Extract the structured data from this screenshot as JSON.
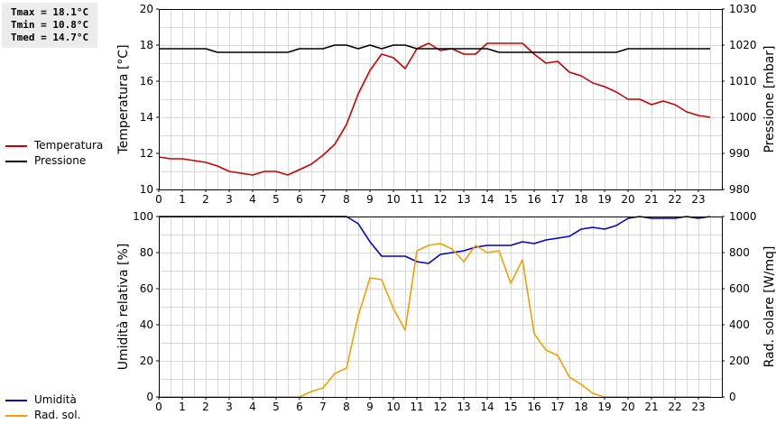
{
  "stats": {
    "tmax": "Tmax = 18.1°C",
    "tmin": "Tmin = 10.8°C",
    "tmed": "Tmed = 14.7°C"
  },
  "colors": {
    "temperature": "#cc0000",
    "pressure": "#000000",
    "humidity": "#0000cc",
    "radiation": "#f0a000",
    "grid": "#d8d8d8"
  },
  "legends": {
    "top": [
      {
        "label": "Temperatura",
        "color": "#cc0000"
      },
      {
        "label": "Pressione",
        "color": "#000000"
      }
    ],
    "bottom": [
      {
        "label": "Umidità",
        "color": "#0000cc"
      },
      {
        "label": "Rad. sol.",
        "color": "#f0a000"
      }
    ]
  },
  "chart_data": [
    {
      "type": "line",
      "xlim": [
        0,
        24
      ],
      "x_ticks": [
        "0",
        "1",
        "2",
        "3",
        "4",
        "5",
        "6",
        "7",
        "8",
        "9",
        "10",
        "11",
        "12",
        "13",
        "14",
        "15",
        "16",
        "17",
        "18",
        "19",
        "20",
        "21",
        "22",
        "23"
      ],
      "left_axis": {
        "label": "Temperatura [°C]",
        "lim": [
          10,
          20
        ],
        "ticks": [
          10,
          12,
          14,
          16,
          18,
          20
        ]
      },
      "right_axis": {
        "label": "Pressione [mbar]",
        "lim": [
          980,
          1030
        ],
        "ticks": [
          980,
          990,
          1000,
          1010,
          1020,
          1030
        ]
      },
      "grid": true,
      "series": [
        {
          "name": "Temperatura",
          "axis": "left",
          "color": "#cc0000",
          "x": [
            0,
            0.5,
            1,
            1.5,
            2,
            2.5,
            3,
            3.5,
            4,
            4.5,
            5,
            5.5,
            6,
            6.5,
            7,
            7.5,
            8,
            8.5,
            9,
            9.5,
            10,
            10.5,
            11,
            11.5,
            12,
            12.5,
            13,
            13.5,
            14,
            14.5,
            15,
            15.5,
            16,
            16.5,
            17,
            17.5,
            18,
            18.5,
            19,
            19.5,
            20,
            20.5,
            21,
            21.5,
            22,
            22.5,
            23,
            23.5
          ],
          "y": [
            11.8,
            11.7,
            11.7,
            11.6,
            11.5,
            11.3,
            11.0,
            10.9,
            10.8,
            11.0,
            11.0,
            10.8,
            11.1,
            11.4,
            11.9,
            12.5,
            13.6,
            15.3,
            16.6,
            17.5,
            17.3,
            16.7,
            17.8,
            18.1,
            17.7,
            17.8,
            17.5,
            17.5,
            18.1,
            18.1,
            18.1,
            18.1,
            17.5,
            17.0,
            17.1,
            16.5,
            16.3,
            15.9,
            15.7,
            15.4,
            15.0,
            15.0,
            14.7,
            14.9,
            14.7,
            14.3,
            14.1,
            14.0
          ]
        },
        {
          "name": "Pressione",
          "axis": "right",
          "color": "#000000",
          "x": [
            0,
            0.5,
            1,
            1.5,
            2,
            2.5,
            3,
            3.5,
            4,
            4.5,
            5,
            5.5,
            6,
            6.5,
            7,
            7.5,
            8,
            8.5,
            9,
            9.5,
            10,
            10.5,
            11,
            11.5,
            12,
            12.5,
            13,
            13.5,
            14,
            14.5,
            15,
            15.5,
            16,
            16.5,
            17,
            17.5,
            18,
            18.5,
            19,
            19.5,
            20,
            20.5,
            21,
            21.5,
            22,
            22.5,
            23,
            23.5
          ],
          "y": [
            1019,
            1019,
            1019,
            1019,
            1019,
            1018,
            1018,
            1018,
            1018,
            1018,
            1018,
            1018,
            1019,
            1019,
            1019,
            1020,
            1020,
            1019,
            1020,
            1019,
            1020,
            1020,
            1019,
            1019,
            1019,
            1019,
            1019,
            1019,
            1019,
            1018,
            1018,
            1018,
            1018,
            1018,
            1018,
            1018,
            1018,
            1018,
            1018,
            1018,
            1019,
            1019,
            1019,
            1019,
            1019,
            1019,
            1019,
            1019
          ]
        }
      ]
    },
    {
      "type": "line",
      "xlim": [
        0,
        24
      ],
      "x_ticks": [
        "0",
        "1",
        "2",
        "3",
        "4",
        "5",
        "6",
        "7",
        "8",
        "9",
        "10",
        "11",
        "12",
        "13",
        "14",
        "15",
        "16",
        "17",
        "18",
        "19",
        "20",
        "21",
        "22",
        "23"
      ],
      "left_axis": {
        "label": "Umidità relativa [%]",
        "lim": [
          0,
          100
        ],
        "ticks": [
          0,
          20,
          40,
          60,
          80,
          100
        ]
      },
      "right_axis": {
        "label": "Rad. solare [W/mq]",
        "lim": [
          0,
          1000
        ],
        "ticks": [
          0,
          200,
          400,
          600,
          800,
          1000
        ]
      },
      "grid": true,
      "series": [
        {
          "name": "Umidità",
          "axis": "left",
          "color": "#0000cc",
          "x": [
            0,
            0.5,
            1,
            1.5,
            2,
            2.5,
            3,
            3.5,
            4,
            4.5,
            5,
            5.5,
            6,
            6.5,
            7,
            7.5,
            8,
            8.5,
            9,
            9.5,
            10,
            10.5,
            11,
            11.5,
            12,
            12.5,
            13,
            13.5,
            14,
            14.5,
            15,
            15.5,
            16,
            16.5,
            17,
            17.5,
            18,
            18.5,
            19,
            19.5,
            20,
            20.5,
            21,
            21.5,
            22,
            22.5,
            23,
            23.5
          ],
          "y": [
            100,
            100,
            100,
            100,
            100,
            100,
            100,
            100,
            100,
            100,
            100,
            100,
            100,
            100,
            100,
            100,
            100,
            96,
            86,
            78,
            78,
            78,
            75,
            74,
            79,
            80,
            81,
            83,
            84,
            84,
            84,
            86,
            85,
            87,
            88,
            89,
            93,
            94,
            93,
            95,
            99,
            100,
            99,
            99,
            99,
            100,
            99,
            100
          ]
        },
        {
          "name": "Rad. sol.",
          "axis": "right",
          "color": "#f0a000",
          "x": [
            0,
            0.5,
            1,
            1.5,
            2,
            2.5,
            3,
            3.5,
            4,
            4.5,
            5,
            5.5,
            6,
            6.5,
            7,
            7.5,
            8,
            8.5,
            9,
            9.5,
            10,
            10.5,
            11,
            11.5,
            12,
            12.5,
            13,
            13.5,
            14,
            14.5,
            15,
            15.5,
            16,
            16.5,
            17,
            17.5,
            18,
            18.5,
            19,
            19.5,
            20,
            20.5,
            21,
            21.5,
            22,
            22.5,
            23,
            23.5
          ],
          "y": [
            0,
            0,
            0,
            0,
            0,
            0,
            0,
            0,
            0,
            0,
            0,
            0,
            0,
            30,
            50,
            130,
            160,
            450,
            660,
            650,
            490,
            370,
            810,
            840,
            850,
            820,
            750,
            840,
            800,
            810,
            630,
            760,
            350,
            260,
            230,
            110,
            70,
            20,
            0,
            0,
            0,
            0,
            0,
            0,
            0,
            0,
            0,
            0
          ]
        }
      ]
    }
  ]
}
